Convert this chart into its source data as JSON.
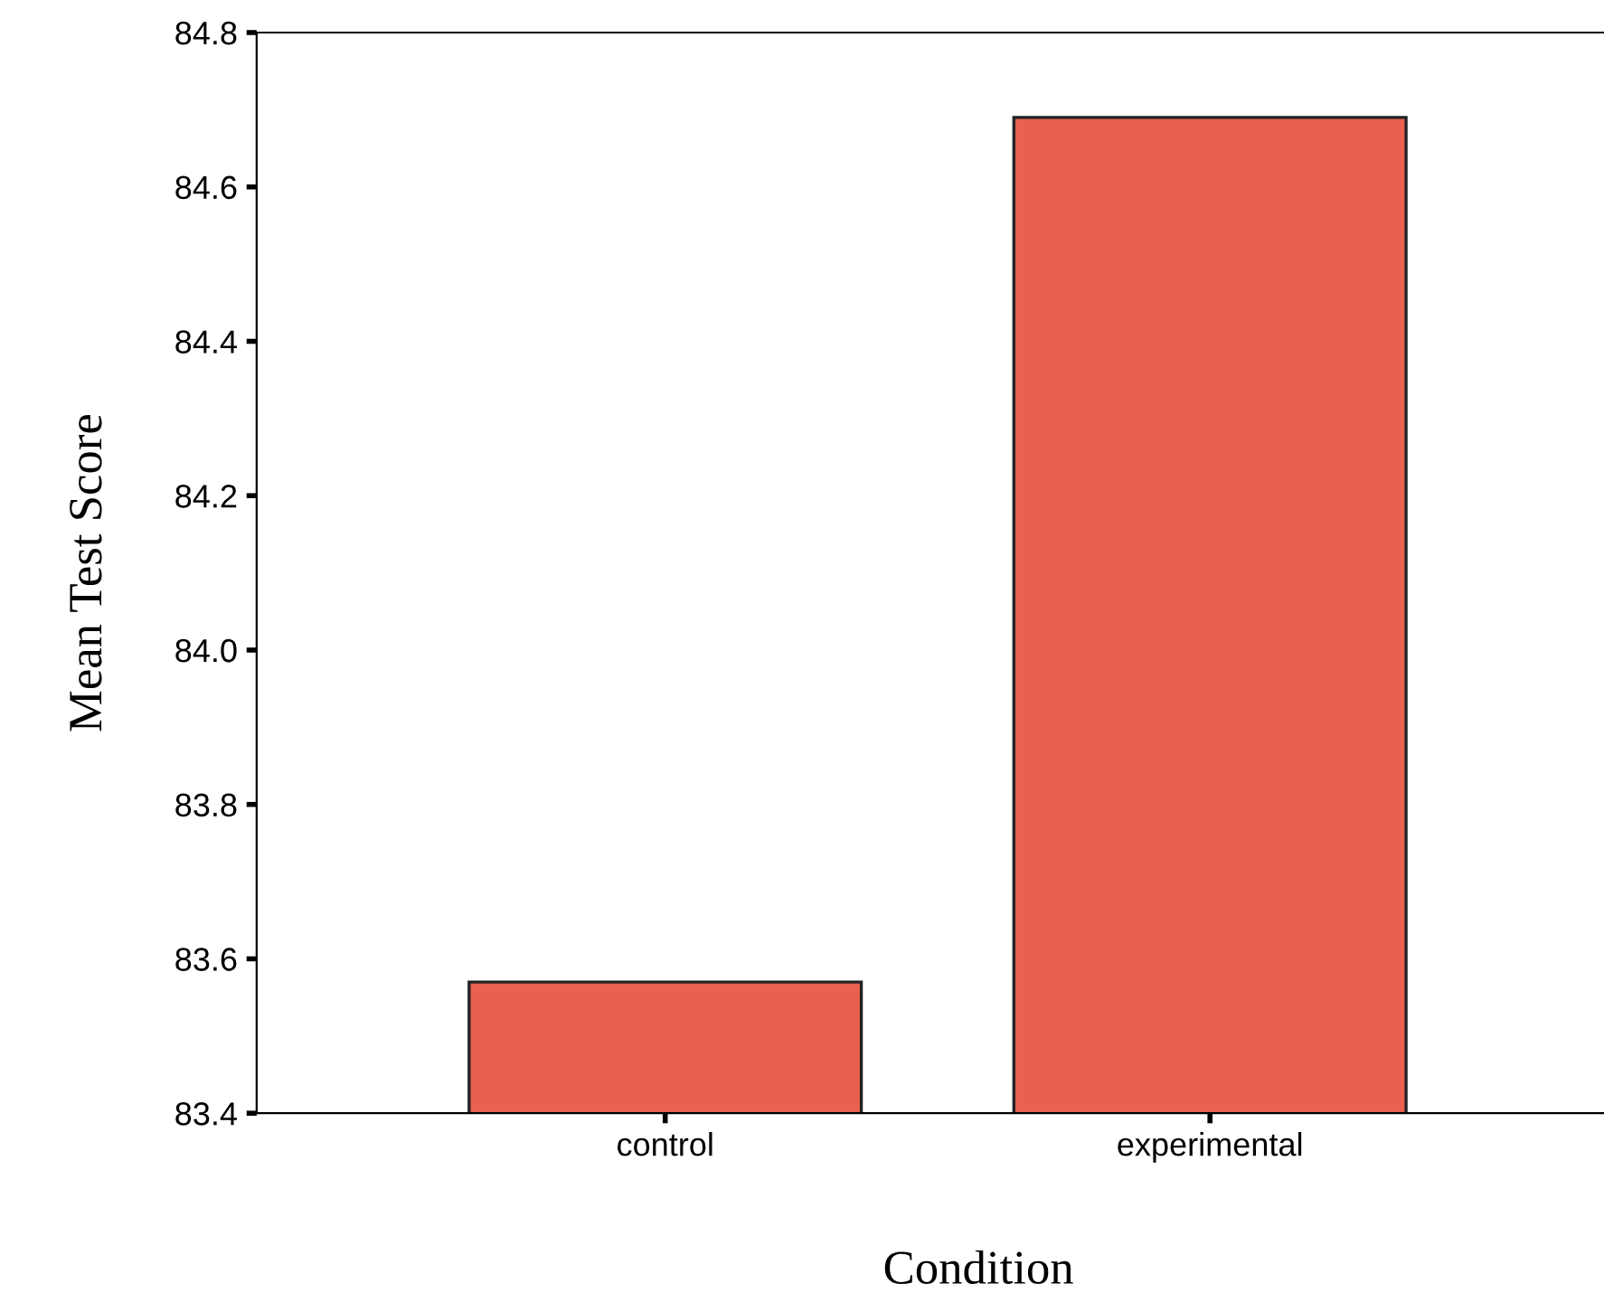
{
  "chart_data": {
    "type": "bar",
    "xlabel": "Condition",
    "ylabel": "Mean Test Score",
    "categories": [
      "control",
      "experimental"
    ],
    "values": [
      83.57,
      84.69
    ],
    "color": "#e8604f",
    "ylim": [
      83.4,
      84.8
    ],
    "yticks": [
      {
        "value": 83.4,
        "label": "83.4"
      },
      {
        "value": 83.6,
        "label": "83.6"
      },
      {
        "value": 83.8,
        "label": "83.8"
      },
      {
        "value": 84.0,
        "label": "84.0"
      },
      {
        "value": 84.2,
        "label": "84.2"
      },
      {
        "value": 84.4,
        "label": "84.4"
      },
      {
        "value": 84.6,
        "label": "84.6"
      },
      {
        "value": 84.8,
        "label": "84.8"
      }
    ],
    "grid": false
  }
}
